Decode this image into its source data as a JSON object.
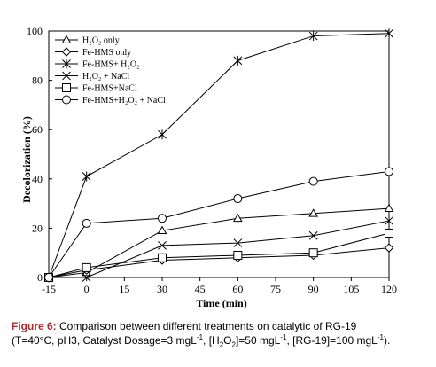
{
  "chart_data": {
    "type": "line",
    "xlabel": "Time (min)",
    "ylabel": "Decolorization (%)",
    "xlim": [
      -15,
      120
    ],
    "ylim": [
      0,
      100
    ],
    "x_ticks": [
      "-15",
      "0",
      "15",
      "30",
      "45",
      "60",
      "75",
      "90",
      "105",
      "120"
    ],
    "y_ticks": [
      "0",
      "20",
      "40",
      "60",
      "80",
      "100"
    ],
    "x": [
      -15,
      0,
      30,
      60,
      90,
      120
    ],
    "grid": false,
    "legend_position": "top-left",
    "series": [
      {
        "name": "H₂O₂ only",
        "marker": "triangle",
        "values": [
          0,
          2,
          19,
          24,
          26,
          28
        ]
      },
      {
        "name": "Fe-HMS only",
        "marker": "diamond",
        "values": [
          0,
          3,
          7,
          8,
          9,
          12
        ]
      },
      {
        "name": "Fe-HMS+ H₂O₂",
        "marker": "asterisk",
        "values": [
          0,
          41,
          58,
          88,
          98,
          99
        ]
      },
      {
        "name": "H₂O₂ + NaCl",
        "marker": "x",
        "values": [
          0,
          0,
          13,
          14,
          17,
          23
        ]
      },
      {
        "name": "Fe-HMS+NaCl",
        "marker": "square",
        "values": [
          0,
          4,
          8,
          9,
          10,
          18
        ]
      },
      {
        "name": "Fe-HMS+H₂O₂ + NaCl",
        "marker": "circle",
        "values": [
          0,
          22,
          24,
          32,
          39,
          43
        ]
      }
    ]
  },
  "caption": {
    "label": "Figure 6:",
    "line1": " Comparison between different treatments on catalytic of RG-19",
    "line2_pre": "(T=40°C, pH3, Catalyst Dosage=3 mgL",
    "sup1": "-1",
    "part_a": ", [H",
    "sub1": "2",
    "part_b": "O",
    "sub2": "2",
    "part_c": "]=50 mgL",
    "sup2": "-1",
    "part_d": ", [RG-19]=100 mgL",
    "sup3": "-1",
    "part_e": ")."
  }
}
